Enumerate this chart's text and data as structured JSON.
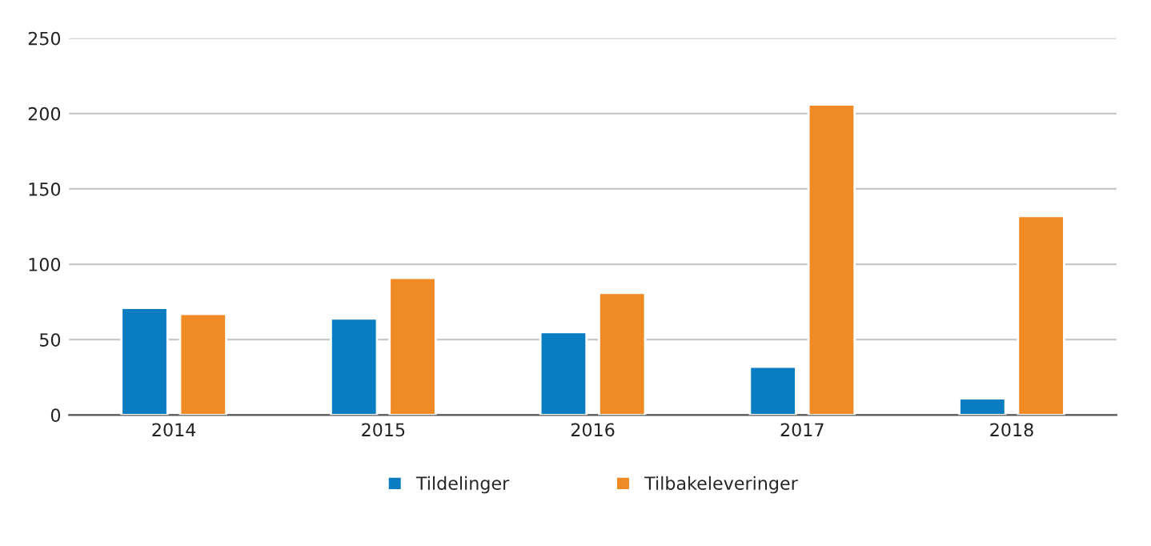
{
  "chart_data": {
    "type": "bar",
    "categories": [
      "2014",
      "2015",
      "2016",
      "2017",
      "2018"
    ],
    "series": [
      {
        "name": "Tildelinger",
        "color": "#0a7dc2",
        "values": [
          71,
          64,
          55,
          32,
          11
        ]
      },
      {
        "name": "Tilbakeleveringer",
        "color": "#f08a24",
        "values": [
          67,
          91,
          81,
          206,
          132
        ]
      }
    ],
    "ylim": [
      0,
      250
    ],
    "yticks": [
      0,
      50,
      100,
      150,
      200,
      250
    ],
    "grid": "y",
    "legend": "bottom"
  }
}
